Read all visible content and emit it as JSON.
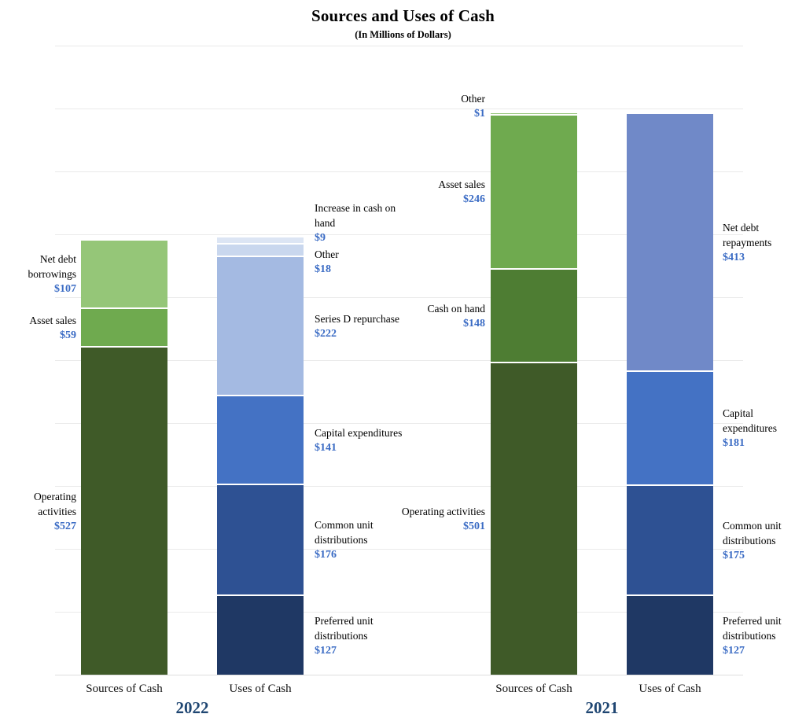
{
  "title": "Sources and Uses of Cash",
  "subtitle": "(In Millions of Dollars)",
  "colors": {
    "value_text": "#3A6BC4",
    "year_text": "#1F4672",
    "label_text": "#000000",
    "gridline": "#EAEAEA",
    "background": "#FFFFFF"
  },
  "chart_data": {
    "type": "bar",
    "stacked": true,
    "unit": "millions of dollars",
    "title": "Sources and Uses of Cash",
    "subtitle": "(In Millions of Dollars)",
    "ylabel": "",
    "xlabel": "",
    "ylim": [
      0,
      1000
    ],
    "gridline_value_step": 100,
    "grid": "horizontal",
    "y_axis_tick_labels_visible": false,
    "legend": "none (segments labeled beside bars)",
    "groups": [
      {
        "year": "2022",
        "bars": [
          {
            "name": "Sources of Cash",
            "label_side": "left",
            "total": 693,
            "segments_bottom_to_top": [
              {
                "label": "Operating activities",
                "value": 527,
                "value_label": "$527",
                "color": "#3F5A28"
              },
              {
                "label": "Asset sales",
                "value": 59,
                "value_label": "$59",
                "color": "#6FAA4F"
              },
              {
                "label": "Net debt borrowings",
                "value": 107,
                "value_label": "$107",
                "color": "#95C678"
              }
            ]
          },
          {
            "name": "Uses of Cash",
            "label_side": "right",
            "total": 693,
            "segments_bottom_to_top": [
              {
                "label": "Preferred unit distributions",
                "value": 127,
                "value_label": "$127",
                "color": "#1F3864"
              },
              {
                "label": "Common unit distributions",
                "value": 176,
                "value_label": "$176",
                "color": "#2E5193"
              },
              {
                "label": "Capital expenditures",
                "value": 141,
                "value_label": "$141",
                "color": "#4472C4"
              },
              {
                "label": "Series D repurchase",
                "value": 222,
                "value_label": "$222",
                "color": "#A4BAE2"
              },
              {
                "label": "Other",
                "value": 18,
                "value_label": "$18",
                "color": "#C9D7EE"
              },
              {
                "label": "Increase in cash on hand",
                "value": 9,
                "value_label": "$9",
                "color": "#DCE5F4"
              }
            ]
          }
        ]
      },
      {
        "year": "2021",
        "bars": [
          {
            "name": "Sources of Cash",
            "label_side": "left",
            "total": 896,
            "segments_bottom_to_top": [
              {
                "label": "Operating activities",
                "value": 501,
                "value_label": "$501",
                "color": "#3F5A28"
              },
              {
                "label": "Cash on hand",
                "value": 148,
                "value_label": "$148",
                "color": "#4E7D33"
              },
              {
                "label": "Asset sales",
                "value": 246,
                "value_label": "$246",
                "color": "#6FAA4F"
              },
              {
                "label": "Other",
                "value": 1,
                "value_label": "$1",
                "color": "#95C678"
              }
            ]
          },
          {
            "name": "Uses of Cash",
            "label_side": "right",
            "total": 896,
            "segments_bottom_to_top": [
              {
                "label": "Preferred unit distributions",
                "value": 127,
                "value_label": "$127",
                "color": "#1F3864"
              },
              {
                "label": "Common unit distributions",
                "value": 175,
                "value_label": "$175",
                "color": "#2E5193"
              },
              {
                "label": "Capital expenditures",
                "value": 181,
                "value_label": "$181",
                "color": "#4472C4"
              },
              {
                "label": "Net debt repayments",
                "value": 413,
                "value_label": "$413",
                "color": "#7089C8"
              }
            ]
          }
        ]
      }
    ]
  }
}
